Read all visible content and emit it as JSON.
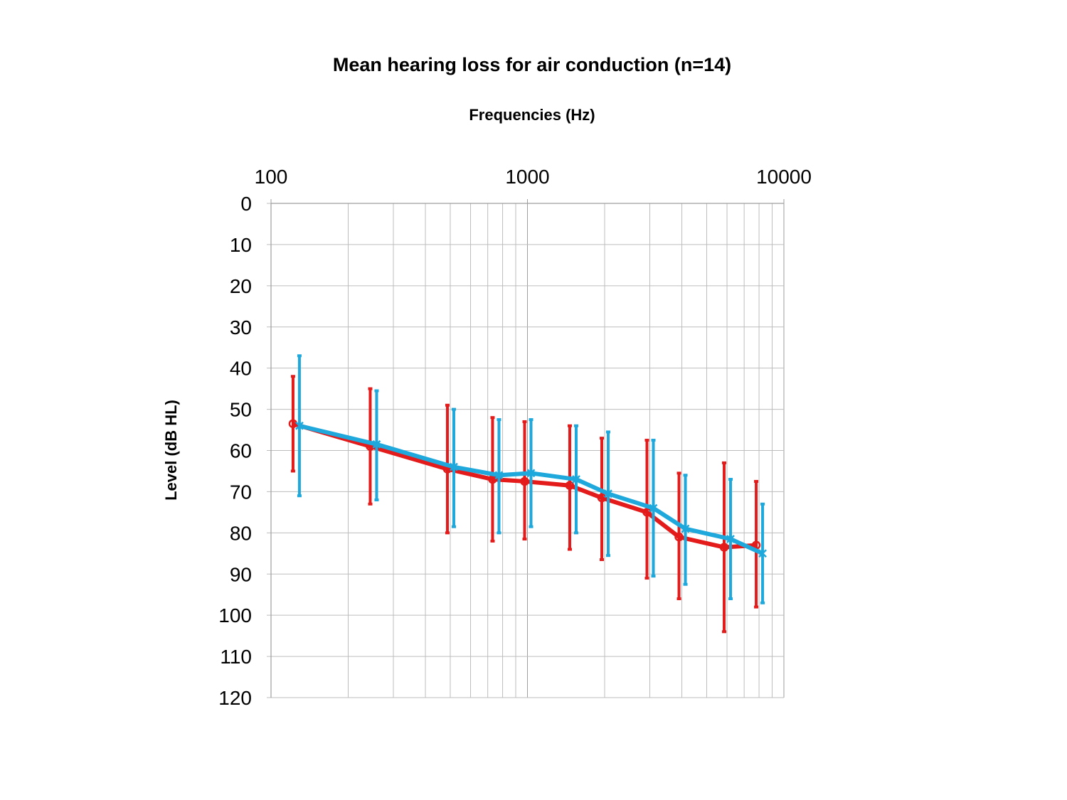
{
  "chart_data": {
    "type": "line",
    "title": "Mean hearing loss for air conduction (n=14)",
    "xlabel": "Frequencies (Hz)",
    "ylabel": "Level (dB HL)",
    "x_scale": "log",
    "x_axis_position": "top",
    "xlim": [
      100,
      10000
    ],
    "ylim": [
      0,
      120
    ],
    "y_inverted": true,
    "x_tick_labels": [
      "100",
      "1000",
      "10000"
    ],
    "x_ticks": [
      100,
      1000,
      10000
    ],
    "y_tick_labels": [
      "0",
      "10",
      "20",
      "30",
      "40",
      "50",
      "60",
      "70",
      "80",
      "90",
      "100",
      "110",
      "120"
    ],
    "y_ticks": [
      0,
      10,
      20,
      30,
      40,
      50,
      60,
      70,
      80,
      90,
      100,
      110,
      120
    ],
    "grid": true,
    "legend": "none",
    "series": [
      {
        "color": "#e31b1b",
        "marker": "circle",
        "x": [
          125,
          250,
          500,
          750,
          1000,
          1500,
          2000,
          3000,
          4000,
          6000,
          8000
        ],
        "values": [
          53.5,
          59,
          64.5,
          67,
          67.5,
          68.5,
          71.5,
          75,
          81,
          83.5,
          83
        ],
        "error_low": [
          42,
          45,
          49,
          52,
          53,
          54,
          57,
          57.5,
          65.5,
          63,
          67.5
        ],
        "error_high": [
          65,
          73,
          80,
          82,
          81.5,
          84,
          86.5,
          91,
          96,
          104,
          98
        ]
      },
      {
        "color": "#1ea8dc",
        "marker": "x",
        "x": [
          125,
          250,
          500,
          750,
          1000,
          1500,
          2000,
          3000,
          4000,
          6000,
          8000
        ],
        "values": [
          54,
          58.5,
          64,
          66,
          65.5,
          67,
          70.5,
          74,
          79,
          81.5,
          85
        ],
        "error_low": [
          37,
          45.5,
          50,
          52.5,
          52.5,
          54,
          55.5,
          57.5,
          66,
          67,
          73
        ],
        "error_high": [
          71,
          72,
          78.5,
          80,
          78.5,
          80,
          85.5,
          90.5,
          92.5,
          96,
          97
        ]
      }
    ]
  }
}
